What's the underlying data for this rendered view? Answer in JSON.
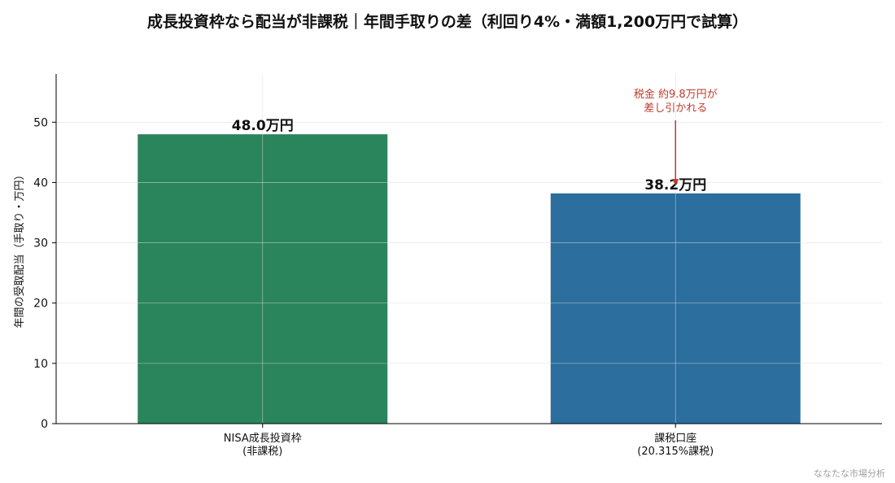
{
  "chart_data": {
    "type": "bar",
    "title": "成長投資枠なら配当が非課税｜年間手取りの差（利回り4%・満額1,200万円で試算）",
    "ylabel": "年間の受取配当（手取り・万円）",
    "xlabel": "",
    "categories": [
      "NISA成長投資枠\n(非課税)",
      "課税口座\n(20.315%課税)"
    ],
    "values": [
      48.0,
      38.2
    ],
    "value_labels": [
      "48.0万円",
      "38.2万円"
    ],
    "colors": [
      "#2a845c",
      "#2c6e9d"
    ],
    "ylim": [
      0,
      58
    ],
    "yticks": [
      0,
      10,
      20,
      30,
      40,
      50
    ],
    "grid": true,
    "annotation": {
      "text": "税金 約9.8万円が\n差し引かれる",
      "color": "#c0392b",
      "target_category": 1,
      "target_value": 39.5
    }
  },
  "credit": "ななたな市場分析"
}
